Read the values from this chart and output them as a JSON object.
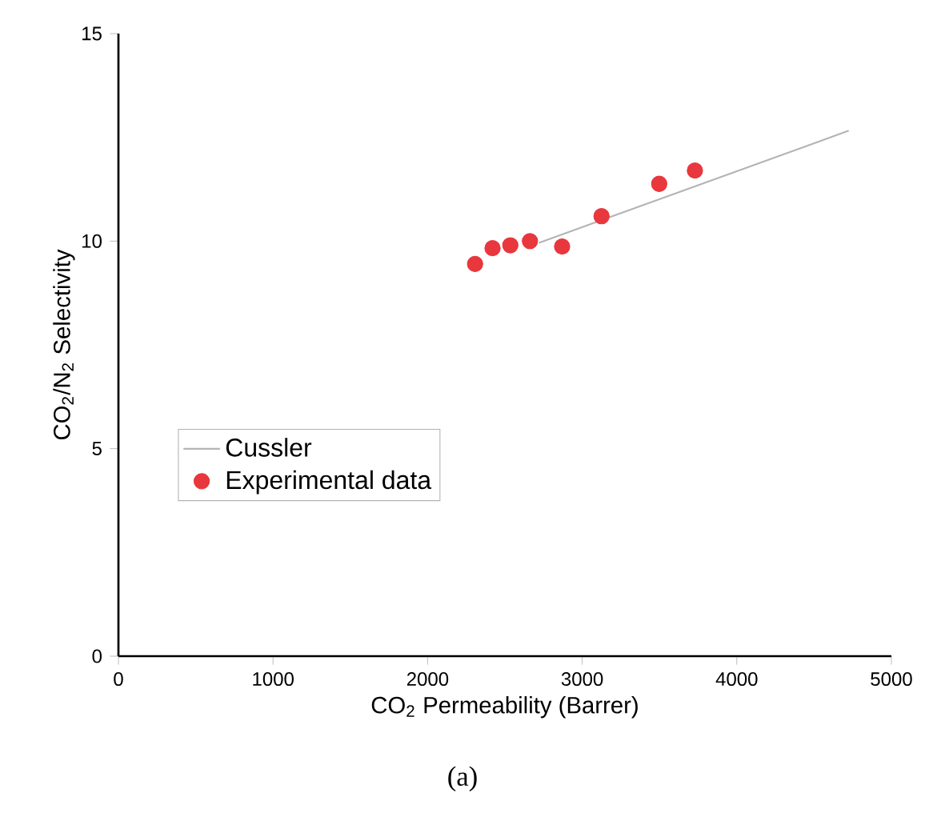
{
  "chart_data": {
    "type": "scatter",
    "xlabel": "CO$_{2}$ Permeability (Barrer)",
    "ylabel": "CO$_{2}$/N$_{2}$ Selectivity",
    "annotations": [
      "(a)"
    ],
    "xlim": [
      0,
      5000
    ],
    "xticks": [
      0,
      1000,
      2000,
      3000,
      4000,
      5000
    ],
    "ylim": [
      0,
      15
    ],
    "yticks": [
      0,
      5,
      10,
      15
    ],
    "grid": false,
    "legend": "left",
    "series": [
      {
        "name": "Cussler",
        "type": "line",
        "marker": "none",
        "color": "#b4b4b4",
        "line_style": "solid",
        "x": [
          2720,
          4724
        ],
        "values": [
          9.96,
          12.66
        ]
      },
      {
        "name": "Experimental data",
        "marker": "circle",
        "color": "#e8373d",
        "x": [
          2307,
          2420,
          2535,
          2662,
          2870,
          3125,
          3498,
          3729
        ],
        "values": [
          9.45,
          9.83,
          9.9,
          10.0,
          9.87,
          10.6,
          11.38,
          11.7
        ]
      }
    ]
  }
}
